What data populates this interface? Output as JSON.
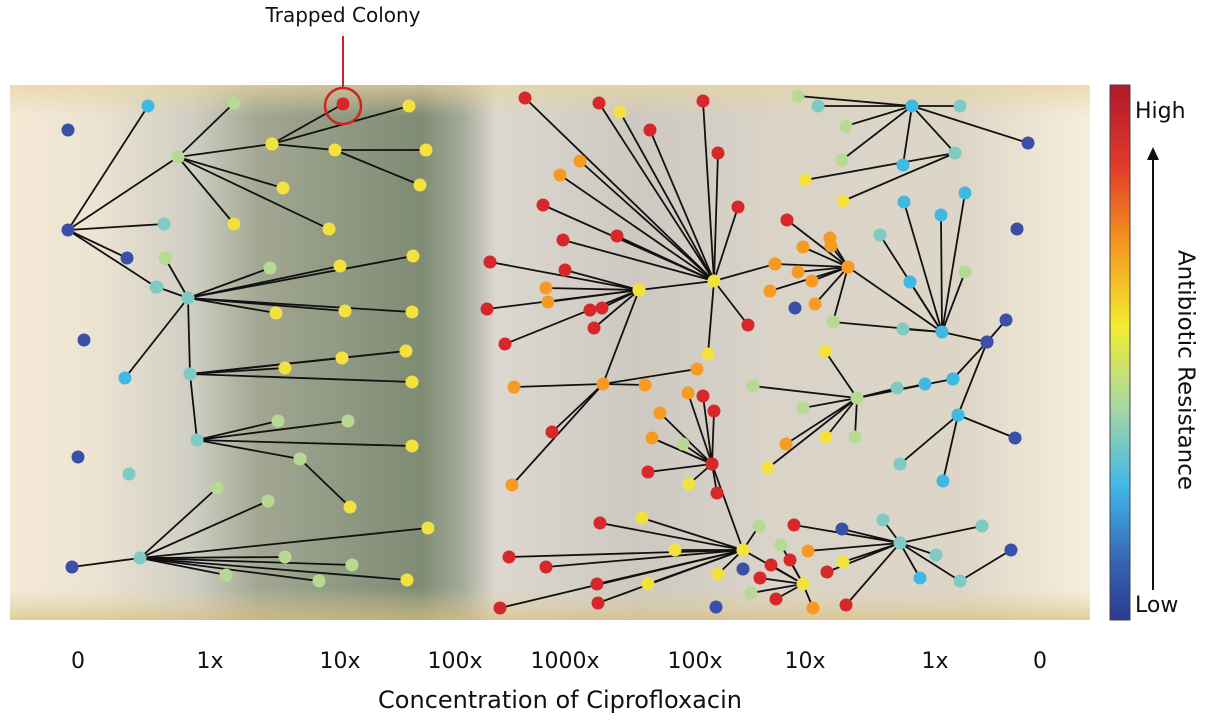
{
  "annotation": "Trapped Colony",
  "colorbar": {
    "high": "High",
    "low": "Low",
    "label": "Antibiotic Resistance"
  },
  "x_axis": {
    "labels": [
      "0",
      "1x",
      "10x",
      "100x",
      "1000x",
      "100x",
      "10x",
      "1x",
      "0"
    ],
    "title": "Concentration of Ciprofloxacin"
  }
}
